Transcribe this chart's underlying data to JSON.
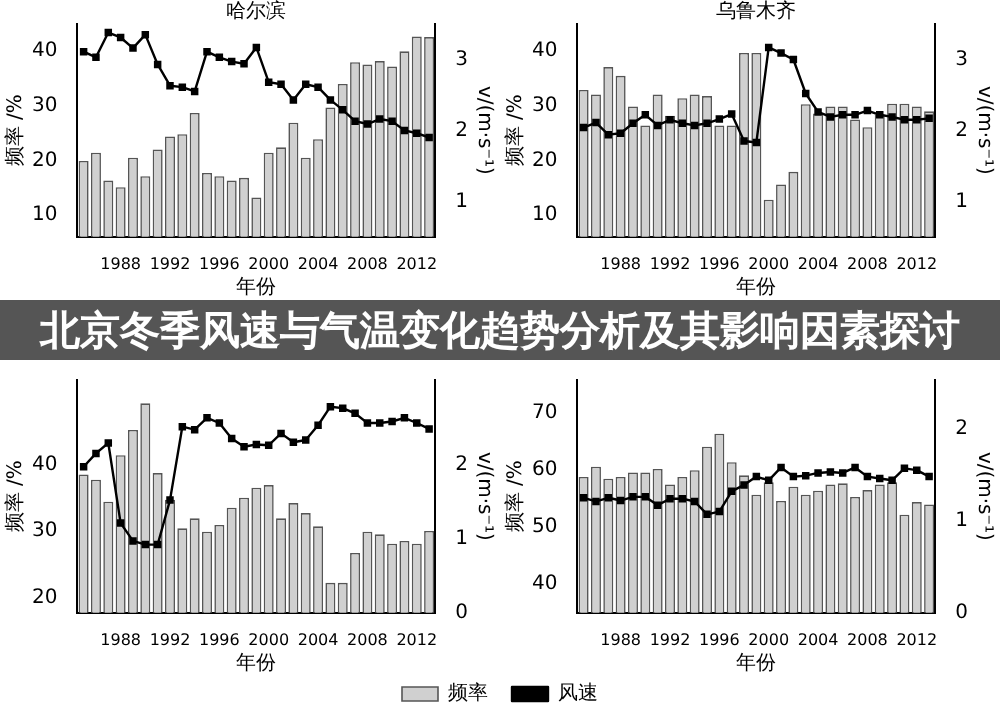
{
  "chart_data": [
    {
      "type": "bar",
      "title": "哈尔滨",
      "annotations": [
        "北京冬季风速与气温变化趋势分析及其影响因素探讨"
      ],
      "xlabel": "年份",
      "ylabel": "频率 /%",
      "y2label": "v/(m·s⁻¹)",
      "categories": [
        null,
        null,
        null,
        "1988",
        null,
        null,
        null,
        "1992",
        null,
        null,
        null,
        "1996",
        null,
        null,
        null,
        "2000",
        null,
        null,
        null,
        "2004",
        null,
        null,
        null,
        "2008",
        null,
        null,
        null,
        "2012",
        null
      ],
      "ylim": [
        6,
        45
      ],
      "yticks": [
        10,
        20,
        30,
        40
      ],
      "y2lim": [
        0.5,
        3.5
      ],
      "y2ticks": [
        1,
        2,
        3
      ],
      "grid": false,
      "legend": false,
      "marker": "square",
      "series": [
        {
          "color": "#d0d0d0",
          "values": [
            19.9,
            21.4,
            16.3,
            15.1,
            20.5,
            17.1,
            22.0,
            24.4,
            24.8,
            28.7,
            17.7,
            17.1,
            16.3,
            16.8,
            13.2,
            21.4,
            22.4,
            26.9,
            20.5,
            23.9,
            29.7,
            34.0,
            38.0,
            37.6,
            38.2,
            37.2,
            40.0,
            42.7,
            42.6
          ]
        },
        {
          "type": "line",
          "axis": "y2",
          "color": "#000000",
          "values": [
            3.11,
            3.03,
            3.38,
            3.31,
            3.16,
            3.35,
            2.93,
            2.63,
            2.61,
            2.55,
            3.11,
            3.03,
            2.97,
            2.94,
            3.17,
            2.68,
            2.65,
            2.43,
            2.65,
            2.61,
            2.43,
            2.29,
            2.13,
            2.09,
            2.16,
            2.13,
            2.0,
            1.96,
            1.9
          ]
        }
      ]
    },
    {
      "type": "bar",
      "title": "乌鲁木齐",
      "xlabel": "年份",
      "ylabel": "频率 /%",
      "y2label": "v/(m·s⁻¹)",
      "categories": [
        null,
        null,
        null,
        "1988",
        null,
        null,
        null,
        "1992",
        null,
        null,
        null,
        "1996",
        null,
        null,
        null,
        "2000",
        null,
        null,
        null,
        "2004",
        null,
        null,
        null,
        "2008",
        null,
        null,
        null,
        "2012",
        null
      ],
      "ylim": [
        6,
        45
      ],
      "yticks": [
        10,
        20,
        30,
        40
      ],
      "y2lim": [
        0.5,
        3.5
      ],
      "y2ticks": [
        1,
        2,
        3
      ],
      "grid": false,
      "legend": false,
      "marker": "square",
      "series": [
        {
          "color": "#d0d0d0",
          "values": [
            32.9,
            32.1,
            37.1,
            35.5,
            29.9,
            26.4,
            32.1,
            28.2,
            31.4,
            32.1,
            31.8,
            26.4,
            26.4,
            39.7,
            39.7,
            12.8,
            15.6,
            17.9,
            30.3,
            28.6,
            29.9,
            29.9,
            27.5,
            26.1,
            28.4,
            30.4,
            30.4,
            29.9,
            29.0
          ]
        },
        {
          "type": "line",
          "axis": "y2",
          "color": "#000000",
          "values": [
            2.04,
            2.11,
            1.94,
            1.96,
            2.1,
            2.22,
            2.07,
            2.15,
            2.1,
            2.07,
            2.1,
            2.16,
            2.23,
            1.85,
            1.83,
            3.17,
            3.09,
            3.0,
            2.52,
            2.26,
            2.19,
            2.22,
            2.22,
            2.28,
            2.22,
            2.19,
            2.15,
            2.15,
            2.17
          ]
        }
      ]
    },
    {
      "type": "bar",
      "xlabel": "年份",
      "ylabel": "频率 /%",
      "y2label": "v/(m·s⁻¹)",
      "categories": [
        null,
        null,
        null,
        "1988",
        null,
        null,
        null,
        "1992",
        null,
        null,
        null,
        "1996",
        null,
        null,
        null,
        "2000",
        null,
        null,
        null,
        "2004",
        null,
        null,
        null,
        "2008",
        null,
        null,
        null,
        "2012",
        null
      ],
      "ylim": [
        17.7,
        52.7
      ],
      "yticks": [
        20,
        30,
        40
      ],
      "y2lim": [
        0,
        3.14
      ],
      "y2ticks": [
        0,
        1,
        2
      ],
      "grid": false,
      "legend": "bottom right",
      "marker": "square",
      "series": [
        {
          "name": "频率",
          "color": "#d0d0d0",
          "values": [
            38.5,
            37.7,
            34.4,
            41.4,
            45.2,
            49.2,
            38.7,
            34.7,
            30.4,
            31.9,
            29.9,
            30.9,
            33.5,
            35.0,
            36.5,
            36.9,
            31.9,
            34.2,
            32.7,
            30.7,
            22.2,
            22.2,
            26.7,
            29.9,
            29.5,
            28.1,
            28.5,
            28.1,
            30.0
          ]
        },
        {
          "type": "line",
          "axis": "y2",
          "color": "#000000",
          "values": [
            1.97,
            2.15,
            2.29,
            1.21,
            0.97,
            0.92,
            0.92,
            1.52,
            2.51,
            2.47,
            2.63,
            2.56,
            2.35,
            2.24,
            2.27,
            2.26,
            2.42,
            2.3,
            2.33,
            2.53,
            2.78,
            2.76,
            2.69,
            2.56,
            2.56,
            2.58,
            2.63,
            2.56,
            2.48
          ]
        }
      ]
    },
    {
      "type": "bar",
      "xlabel": "年份",
      "ylabel": "频率 /%",
      "y2label": "v/(m·s⁻¹)",
      "categories": [
        null,
        null,
        null,
        "1988",
        null,
        null,
        null,
        "1992",
        null,
        null,
        null,
        "1996",
        null,
        null,
        null,
        "2000",
        null,
        null,
        null,
        "2004",
        null,
        null,
        null,
        "2008",
        null,
        null,
        null,
        "2012",
        null
      ],
      "ylim": [
        35,
        75.8
      ],
      "yticks": [
        40,
        50,
        60,
        70
      ],
      "y2lim": [
        0,
        2.53
      ],
      "y2ticks": [
        0,
        1,
        2
      ],
      "grid": false,
      "legend": "bottom left",
      "marker": "square",
      "series": [
        {
          "color": "#d0d0d0",
          "values": [
            58.8,
            60.6,
            58.5,
            58.8,
            59.6,
            59.6,
            60.2,
            57.5,
            58.8,
            60.0,
            64.1,
            66.4,
            61.4,
            59.1,
            55.7,
            57.9,
            54.6,
            57.1,
            55.7,
            56.4,
            57.5,
            57.7,
            55.3,
            56.5,
            57.5,
            57.9,
            52.2,
            54.4,
            54.0
          ]
        },
        {
          "type": "line",
          "axis": "y2",
          "name": "风速",
          "color": "#000000",
          "values": [
            1.25,
            1.21,
            1.25,
            1.22,
            1.26,
            1.26,
            1.17,
            1.24,
            1.24,
            1.21,
            1.07,
            1.1,
            1.32,
            1.39,
            1.48,
            1.44,
            1.58,
            1.48,
            1.49,
            1.52,
            1.53,
            1.52,
            1.58,
            1.48,
            1.46,
            1.44,
            1.57,
            1.55,
            1.48
          ]
        }
      ]
    }
  ]
}
